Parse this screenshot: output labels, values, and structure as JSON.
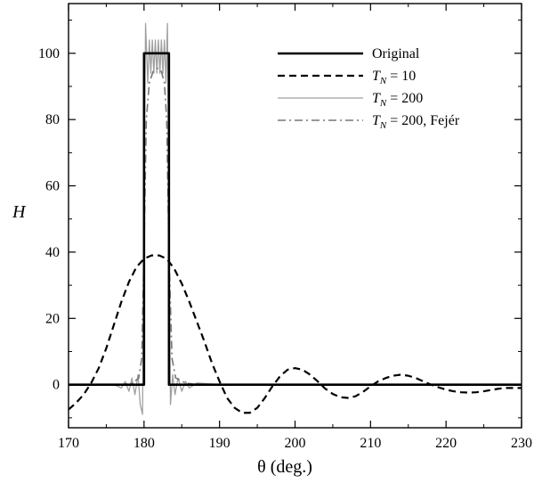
{
  "chart_data": {
    "type": "line",
    "title": "",
    "xlabel": "θ (deg.)",
    "ylabel": "H",
    "xlim": [
      170,
      230
    ],
    "ylim": [
      -13,
      115
    ],
    "xticks": [
      170,
      180,
      190,
      200,
      210,
      220,
      230
    ],
    "yticks": [
      0,
      20,
      40,
      60,
      80,
      100
    ],
    "xtick_labels": [
      "170",
      "180",
      "190",
      "200",
      "210",
      "220",
      "230"
    ],
    "ytick_labels": [
      "0",
      "20",
      "40",
      "60",
      "80",
      "100"
    ],
    "grid": false,
    "legend_position": "top-right",
    "series": [
      {
        "name": "Original",
        "style": "solid-thick",
        "color": "#000000",
        "x": [
          170,
          180,
          180,
          183.3,
          183.3,
          230
        ],
        "y": [
          0,
          0,
          100,
          100,
          0,
          0
        ]
      },
      {
        "name": "T_N = 10",
        "style": "dashed",
        "color": "#000000",
        "x": [
          170,
          171,
          172,
          173,
          174,
          175,
          176,
          177,
          178,
          179,
          180,
          181,
          182,
          183,
          184,
          185,
          186,
          187,
          188,
          189,
          190,
          191,
          192,
          193,
          194,
          195,
          196,
          197,
          198,
          199,
          200,
          201,
          202,
          203,
          204,
          205,
          206,
          207,
          208,
          209,
          210,
          211,
          212,
          213,
          214,
          215,
          216,
          217,
          218,
          219,
          220,
          221,
          222,
          223,
          224,
          225,
          226,
          227,
          228,
          229,
          230
        ],
        "y": [
          -7.5,
          -5.5,
          -3,
          0.5,
          5,
          11,
          18,
          25,
          31,
          35.5,
          38,
          39,
          39,
          38,
          35,
          30.5,
          25,
          19,
          13,
          6.5,
          1,
          -4,
          -7,
          -8.5,
          -8.5,
          -7,
          -4,
          -0.5,
          2.5,
          4.5,
          5,
          4.5,
          3,
          1,
          -1.2,
          -2.8,
          -3.8,
          -4,
          -3.5,
          -2.2,
          -0.5,
          1,
          2,
          2.7,
          3,
          2.7,
          2,
          1,
          0,
          -0.8,
          -1.5,
          -2,
          -2.3,
          -2.4,
          -2.3,
          -2,
          -1.6,
          -1.2,
          -1,
          -1,
          -1
        ]
      },
      {
        "name": "T_N = 200",
        "style": "solid-thin",
        "color": "#a0a0a0",
        "x": [
          170,
          176,
          177,
          177.5,
          178,
          178.4,
          178.8,
          179.2,
          179.5,
          179.8,
          180.0,
          180.2,
          180.5,
          180.7,
          180.9,
          181.1,
          181.3,
          181.5,
          181.7,
          181.9,
          182.1,
          182.3,
          182.5,
          182.7,
          182.9,
          183.1,
          183.3,
          183.5,
          183.8,
          184.1,
          184.5,
          185,
          185.5,
          186,
          187,
          190,
          230
        ],
        "y": [
          0,
          0,
          -1,
          1,
          -2,
          2,
          -3,
          3,
          -6,
          -9,
          50,
          109,
          91,
          104,
          94,
          104,
          94,
          104,
          94,
          104,
          94,
          104,
          94,
          104,
          91,
          109,
          50,
          -6,
          3,
          -3,
          2,
          -2,
          1,
          -1,
          0.5,
          0,
          0
        ]
      },
      {
        "name": "T_N = 200, Fejér",
        "style": "dashdot",
        "color": "#777777",
        "x": [
          170,
          177,
          178.5,
          179.3,
          179.7,
          180.0,
          180.3,
          180.7,
          181.2,
          181.8,
          182.3,
          182.7,
          183.0,
          183.3,
          183.7,
          184.2,
          185.5,
          187,
          230
        ],
        "y": [
          0,
          0,
          0.5,
          2,
          8,
          40,
          80,
          91,
          94.5,
          95.5,
          94.5,
          91,
          80,
          40,
          8,
          2,
          0.5,
          0,
          0
        ]
      }
    ]
  }
}
